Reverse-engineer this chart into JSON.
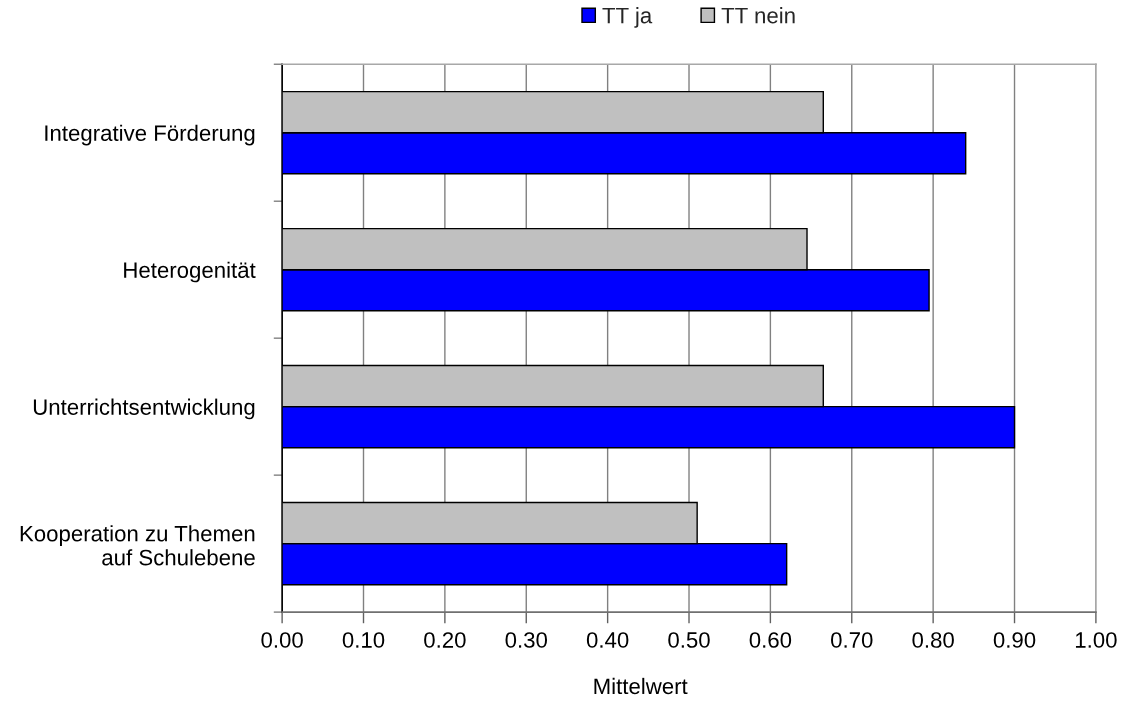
{
  "chart_data": {
    "type": "bar",
    "orientation": "horizontal",
    "xlabel": "Mittelwert",
    "categories": [
      "Integrative Förderung",
      "Heterogenität",
      "Unterrichtsentwicklung",
      "Kooperation zu Themen\nauf Schulebene"
    ],
    "series": [
      {
        "name": "TT ja",
        "color": "#0000ff",
        "values": [
          0.84,
          0.795,
          0.9,
          0.62
        ]
      },
      {
        "name": "TT nein",
        "color": "#c0c0c0",
        "values": [
          0.665,
          0.645,
          0.665,
          0.51
        ]
      }
    ],
    "xlim": [
      0,
      1
    ],
    "xticks": [
      {
        "value": 0,
        "label": "0.00"
      },
      {
        "value": 0.1,
        "label": "0.10"
      },
      {
        "value": 0.2,
        "label": "0.20"
      },
      {
        "value": 0.3,
        "label": "0.30"
      },
      {
        "value": 0.4,
        "label": "0.40"
      },
      {
        "value": 0.5,
        "label": "0.50"
      },
      {
        "value": 0.6,
        "label": "0.60"
      },
      {
        "value": 0.7,
        "label": "0.70"
      },
      {
        "value": 0.8,
        "label": "0.80"
      },
      {
        "value": 0.9,
        "label": "0.90"
      },
      {
        "value": 1,
        "label": "1.00"
      }
    ],
    "grid": "x",
    "legend": "top"
  }
}
